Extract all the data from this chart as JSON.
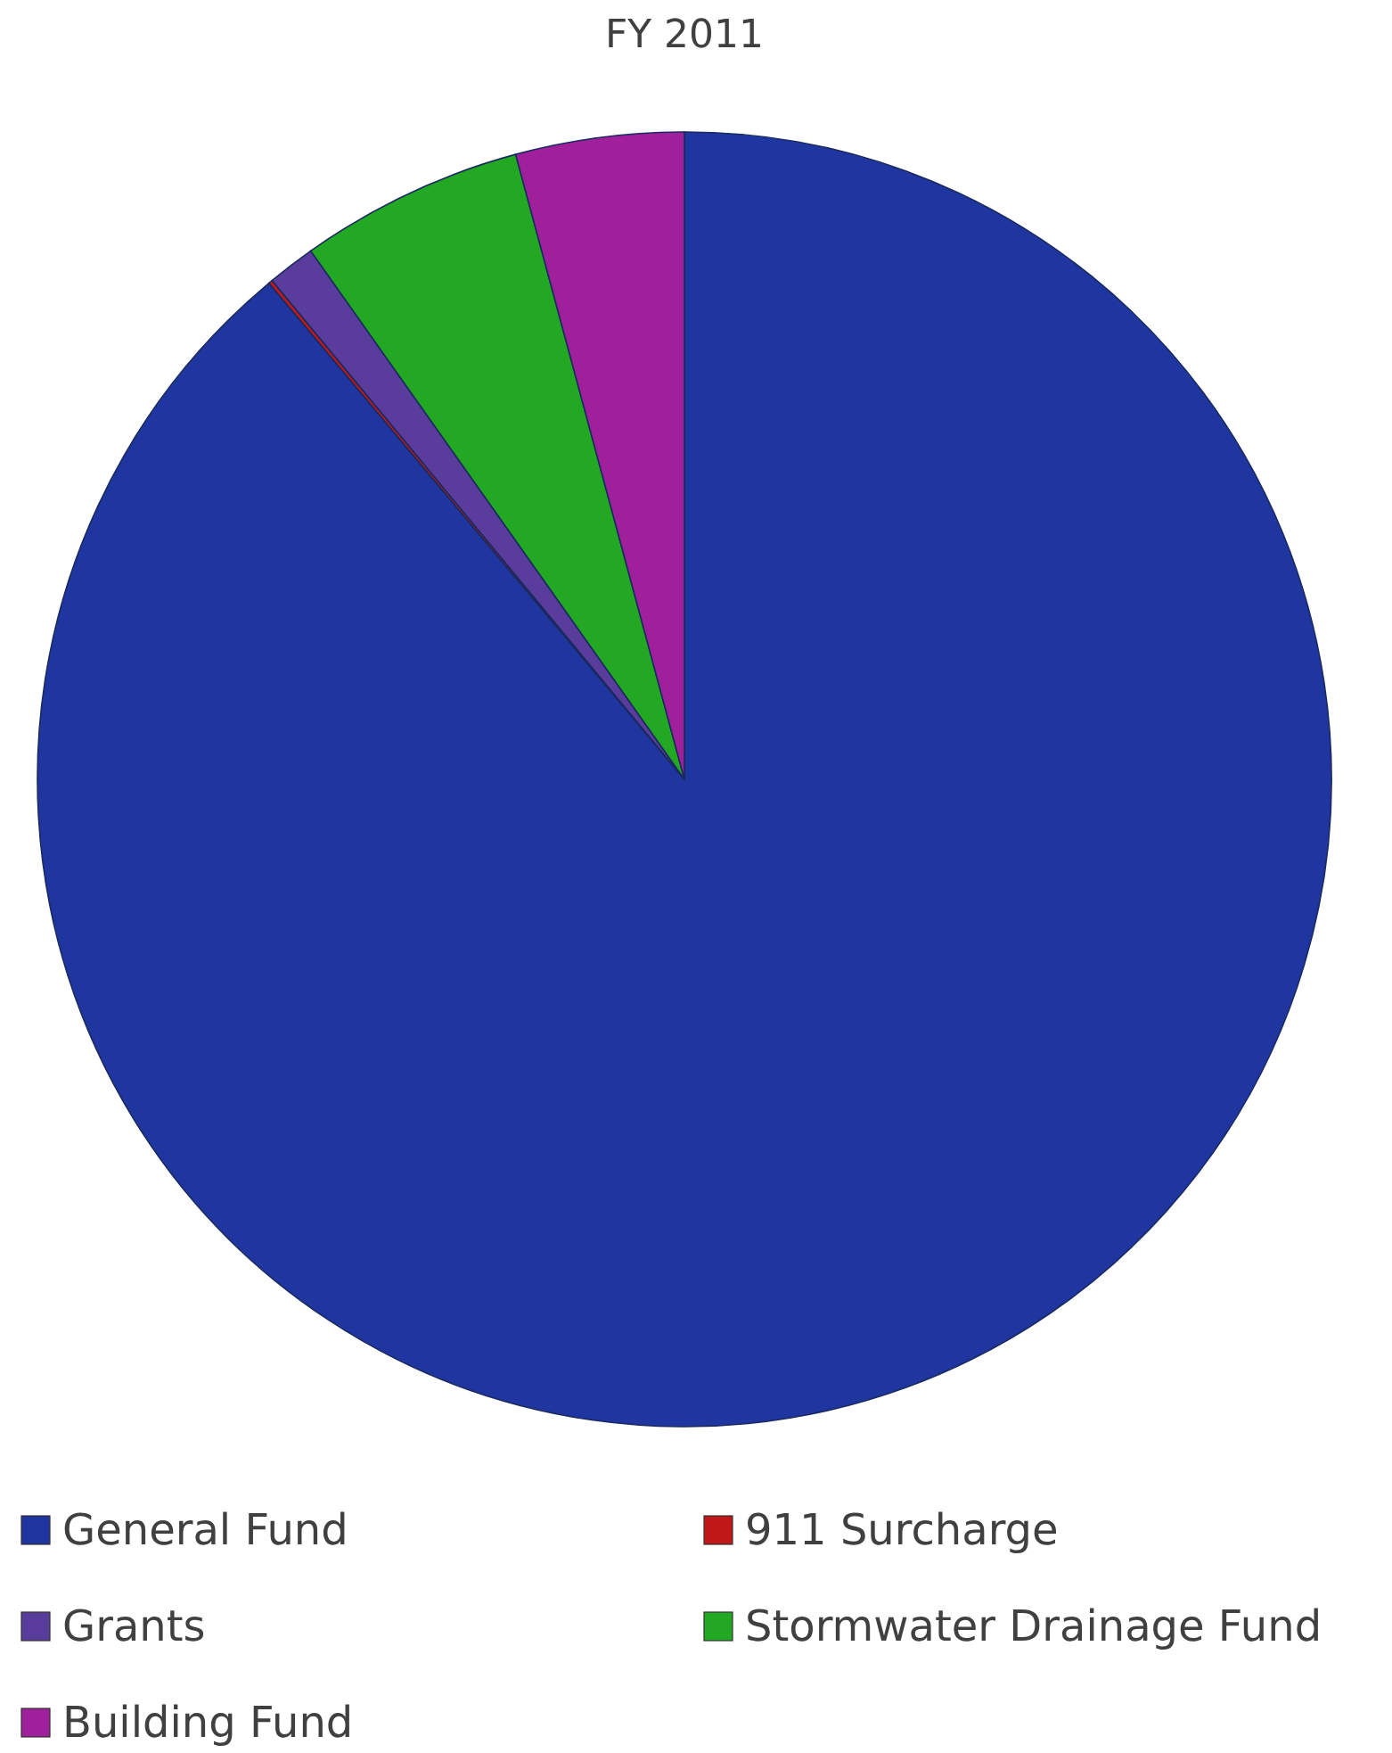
{
  "chart_data": {
    "type": "pie",
    "title": "FY 2011",
    "categories": [
      "General Fund",
      "911 Surcharge",
      "Grants",
      "Stormwater Drainage Fund",
      "Building Fund"
    ],
    "values": [
      88.9,
      0.1,
      1.2,
      5.6,
      4.2
    ],
    "colors": [
      "#1f36a0",
      "#c01818",
      "#5a3c9c",
      "#22a822",
      "#a0209c"
    ],
    "legend": "bottom"
  }
}
